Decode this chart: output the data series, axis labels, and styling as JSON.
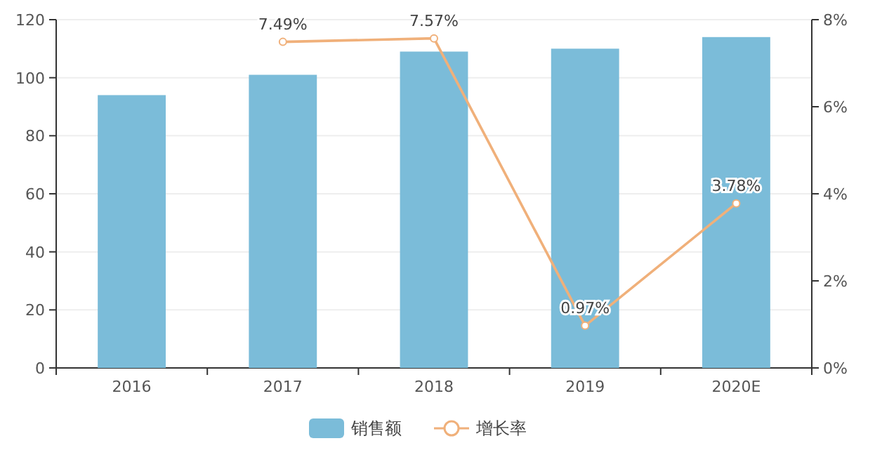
{
  "chart_data": {
    "type": "bar",
    "categories": [
      "2016",
      "2017",
      "2018",
      "2019",
      "2020E"
    ],
    "series": [
      {
        "name": "销售额",
        "color": "#7bbcd9",
        "values": [
          94,
          101,
          109,
          110,
          114
        ]
      },
      {
        "name": "增长率",
        "type": "line",
        "axis": "y2",
        "color": "#f0b07a",
        "marker": "circle",
        "values": [
          null,
          7.49,
          7.57,
          0.97,
          3.78
        ],
        "value_labels": [
          null,
          "7.49%",
          "7.57%",
          "0.97%",
          "3.78%"
        ]
      }
    ],
    "ylim": [
      0,
      120
    ],
    "yticks": [
      0,
      20,
      40,
      60,
      80,
      100,
      120
    ],
    "y2lim": [
      0,
      8
    ],
    "y2ticks": [
      {
        "value": 0,
        "label": "0%"
      },
      {
        "value": 2,
        "label": "2%"
      },
      {
        "value": 4,
        "label": "4%"
      },
      {
        "value": 6,
        "label": "6%"
      },
      {
        "value": 8,
        "label": "8%"
      }
    ],
    "grid": "y",
    "legend": "bottom"
  }
}
